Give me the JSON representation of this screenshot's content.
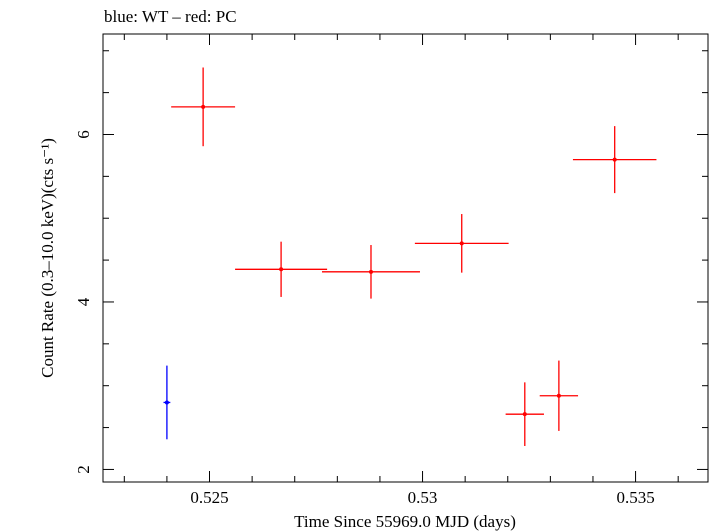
{
  "chart_data": {
    "type": "scatter",
    "title": "blue: WT – red: PC",
    "xlabel": "Time Since 55969.0 MJD (days)",
    "ylabel": "Count Rate (0.3–10.0 keV)(cts s⁻¹)",
    "xlim": [
      0.5225,
      0.5367
    ],
    "ylim": [
      1.85,
      7.2
    ],
    "x_ticks": [
      0.525,
      0.53,
      0.535
    ],
    "x_tick_labels": [
      "0.525",
      "0.53",
      "0.535"
    ],
    "y_ticks": [
      2,
      4,
      6
    ],
    "y_tick_labels": [
      "2",
      "4",
      "6"
    ],
    "grid": false,
    "series": [
      {
        "name": "WT",
        "color": "#0000ff",
        "points": [
          {
            "x": 0.524,
            "xerr": 8e-05,
            "y": 2.8,
            "yerr": 0.44
          }
        ]
      },
      {
        "name": "PC",
        "color": "#ff0000",
        "points": [
          {
            "x": 0.52485,
            "xerr": 0.00075,
            "y": 6.33,
            "yerr": 0.47
          },
          {
            "x": 0.52668,
            "xerr": 0.00108,
            "y": 4.39,
            "yerr": 0.33
          },
          {
            "x": 0.52879,
            "xerr": 0.00115,
            "y": 4.36,
            "yerr": 0.32
          },
          {
            "x": 0.53092,
            "xerr": 0.0011,
            "y": 4.7,
            "yerr": 0.35
          },
          {
            "x": 0.5324,
            "xerr": 0.00045,
            "y": 2.66,
            "yerr": 0.38
          },
          {
            "x": 0.5332,
            "xerr": 0.00045,
            "y": 2.88,
            "yerr": 0.42
          },
          {
            "x": 0.53451,
            "xerr": 0.00098,
            "y": 5.7,
            "yerr": 0.4
          }
        ]
      }
    ]
  }
}
